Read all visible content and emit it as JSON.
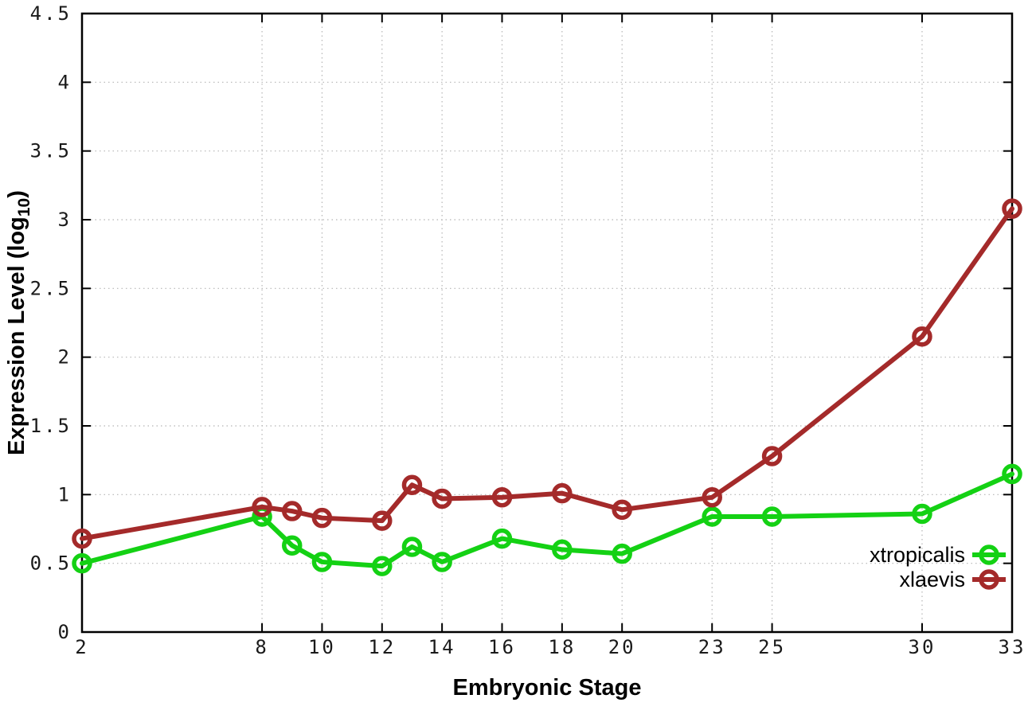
{
  "chart_data": {
    "type": "line",
    "title": "",
    "xlabel": "Embryonic Stage",
    "ylabel": "Expression Level (log10)",
    "ylabel_parts": {
      "pre": "Expression Level (log",
      "sub": "10",
      "post": ")"
    },
    "x": [
      2,
      8,
      9,
      10,
      12,
      13,
      14,
      16,
      18,
      20,
      23,
      25,
      30,
      33
    ],
    "series": [
      {
        "name": "xtropicalis",
        "color": "#14d114",
        "values": [
          0.5,
          0.84,
          0.63,
          0.51,
          0.48,
          0.62,
          0.51,
          0.68,
          0.6,
          0.57,
          0.84,
          0.84,
          0.86,
          1.15
        ]
      },
      {
        "name": "xlaevis",
        "color": "#a42a2a",
        "values": [
          0.68,
          0.91,
          0.88,
          0.83,
          0.81,
          1.07,
          0.97,
          0.98,
          1.01,
          0.89,
          0.98,
          1.28,
          2.15,
          3.08
        ]
      }
    ],
    "xlim": [
      2,
      33
    ],
    "ylim": [
      0,
      4.5
    ],
    "xticks": [
      2,
      8,
      10,
      12,
      14,
      16,
      18,
      20,
      23,
      25,
      30,
      33
    ],
    "xtick_labels": [
      "2",
      "8",
      "10",
      "12",
      "14",
      "16",
      "18",
      "20",
      "23",
      "25",
      "30",
      "33"
    ],
    "yticks": [
      0,
      0.5,
      1,
      1.5,
      2,
      2.5,
      3,
      3.5,
      4,
      4.5
    ],
    "ytick_labels": [
      "0",
      "0.5",
      "1",
      "1.5",
      "2",
      "2.5",
      "3",
      "3.5",
      "4",
      "4.5"
    ],
    "grid": true,
    "marker": "open-circle",
    "legend_position": "inside-bottom-right",
    "legend": [
      {
        "label": "xtropicalis",
        "color": "#14d114"
      },
      {
        "label": "xlaevis",
        "color": "#a42a2a"
      }
    ],
    "colors": {
      "background": "#ffffff",
      "border": "#000000",
      "grid": "#b5b5b5",
      "tick_text": "#1a1a1a",
      "title_text": "#000000"
    }
  }
}
